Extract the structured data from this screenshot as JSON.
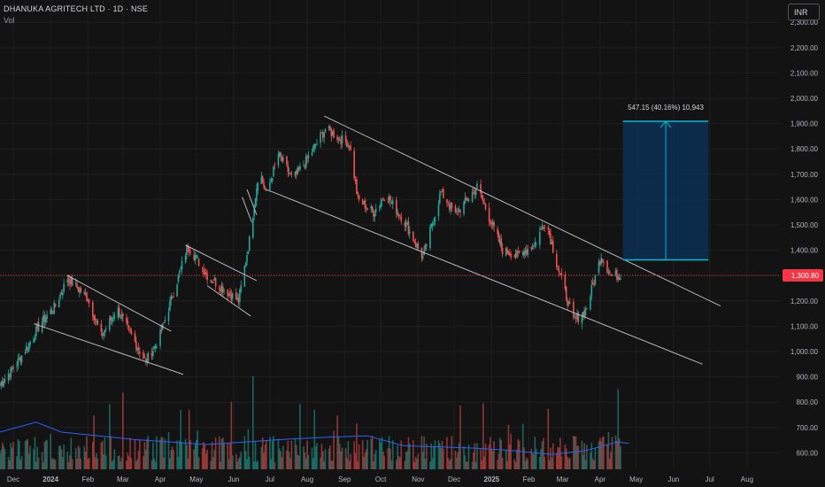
{
  "header": {
    "title": "DHANUKA AGRITECH LTD · 1D · NSE",
    "volume_label": "Vol",
    "currency_button": "INR"
  },
  "colors": {
    "background": "#131313",
    "grid": "#1f1f1f",
    "up": "#26a69a",
    "down": "#ef5350",
    "volume_ma": "#2962ff",
    "price_line": "#f23645",
    "channel": "#d1d4dc",
    "measure_fill": "#0c2f52",
    "measure_line": "#00bcd4"
  },
  "chart_data": {
    "type": "candlestick",
    "title": "DHANUKA AGRITECH LTD · 1D · NSE",
    "ylim": [
      560,
      2300
    ],
    "y_ticks": [
      "600.00",
      "700.00",
      "800.00",
      "900.00",
      "1,000.00",
      "1,100.00",
      "1,200.00",
      "1,300.00",
      "1,400.00",
      "1,500.00",
      "1,600.00",
      "1,700.00",
      "1,800.00",
      "1,900.00",
      "2,000.00",
      "2,100.00",
      "2,200.00",
      "2,300.00"
    ],
    "x_ticks": [
      "Dec",
      "2024",
      "Feb",
      "Mar",
      "Apr",
      "May",
      "Jun",
      "Jul",
      "Aug",
      "Sep",
      "Oct",
      "Nov",
      "Dec",
      "2025",
      "Feb",
      "Mar",
      "Apr",
      "May",
      "Jun",
      "Jul",
      "Aug"
    ],
    "last_price": {
      "label": "1,300.80",
      "value": 1300.8
    },
    "price_path": [
      [
        "2023-11-20",
        870
      ],
      [
        "2023-12-05",
        960
      ],
      [
        "2023-12-25",
        1120
      ],
      [
        "2024-01-05",
        1180
      ],
      [
        "2024-01-15",
        1290
      ],
      [
        "2024-02-01",
        1210
      ],
      [
        "2024-02-12",
        1060
      ],
      [
        "2024-02-25",
        1170
      ],
      [
        "2024-03-05",
        1090
      ],
      [
        "2024-03-20",
        960
      ],
      [
        "2024-03-31",
        1050
      ],
      [
        "2024-04-15",
        1280
      ],
      [
        "2024-04-24",
        1420
      ],
      [
        "2024-05-10",
        1300
      ],
      [
        "2024-05-28",
        1230
      ],
      [
        "2024-06-05",
        1200
      ],
      [
        "2024-06-14",
        1440
      ],
      [
        "2024-06-22",
        1720
      ],
      [
        "2024-06-28",
        1620
      ],
      [
        "2024-07-08",
        1780
      ],
      [
        "2024-07-20",
        1680
      ],
      [
        "2024-08-01",
        1760
      ],
      [
        "2024-08-16",
        1880
      ],
      [
        "2024-08-28",
        1840
      ],
      [
        "2024-09-05",
        1820
      ],
      [
        "2024-09-12",
        1600
      ],
      [
        "2024-09-25",
        1550
      ],
      [
        "2024-10-05",
        1620
      ],
      [
        "2024-10-20",
        1520
      ],
      [
        "2024-11-05",
        1370
      ],
      [
        "2024-11-20",
        1630
      ],
      [
        "2024-12-02",
        1540
      ],
      [
        "2024-12-20",
        1650
      ],
      [
        "2025-01-10",
        1400
      ],
      [
        "2025-01-22",
        1380
      ],
      [
        "2025-02-05",
        1420
      ],
      [
        "2025-02-15",
        1520
      ],
      [
        "2025-02-25",
        1330
      ],
      [
        "2025-03-10",
        1120
      ],
      [
        "2025-03-20",
        1160
      ],
      [
        "2025-04-02",
        1380
      ],
      [
        "2025-04-10",
        1300
      ],
      [
        "2025-04-18",
        1300.8
      ]
    ],
    "channels": [
      {
        "upper": [
          [
            "2024-01-15",
            1300
          ],
          [
            "2024-04-10",
            1080
          ]
        ],
        "lower": [
          [
            "2023-12-18",
            1110
          ],
          [
            "2024-04-20",
            910
          ]
        ]
      },
      {
        "upper": [
          [
            "2024-04-22",
            1420
          ],
          [
            "2024-06-20",
            1280
          ]
        ],
        "lower": [
          [
            "2024-05-10",
            1260
          ],
          [
            "2024-06-15",
            1140
          ]
        ]
      },
      {
        "upper": [
          [
            "2024-06-12",
            1640
          ],
          [
            "2024-06-20",
            1540
          ]
        ],
        "lower": [
          [
            "2024-06-08",
            1610
          ],
          [
            "2024-06-16",
            1510
          ]
        ]
      },
      {
        "upper": [
          [
            "2024-08-15",
            1930
          ],
          [
            "2025-07-10",
            1180
          ]
        ],
        "lower": [
          [
            "2024-06-28",
            1640
          ],
          [
            "2025-06-25",
            950
          ]
        ]
      }
    ],
    "measure": {
      "label": "547.15 (40.16%) 10,943",
      "from": [
        "2025-04-20",
        1362
      ],
      "to": [
        "2025-06-30",
        1909
      ]
    },
    "volume_panel": {
      "ylim": [
        0,
        100
      ],
      "ma_path": [
        [
          "2023-11-20",
          30
        ],
        [
          "2023-12-20",
          38
        ],
        [
          "2024-01-10",
          30
        ],
        [
          "2024-02-10",
          27
        ],
        [
          "2024-03-10",
          24
        ],
        [
          "2024-04-10",
          22
        ],
        [
          "2024-05-10",
          20
        ],
        [
          "2024-06-10",
          22
        ],
        [
          "2024-07-10",
          24
        ],
        [
          "2024-08-20",
          26
        ],
        [
          "2024-09-20",
          27
        ],
        [
          "2024-10-20",
          19
        ],
        [
          "2024-11-20",
          18
        ],
        [
          "2024-12-20",
          17
        ],
        [
          "2025-01-20",
          15
        ],
        [
          "2025-02-20",
          12
        ],
        [
          "2025-03-20",
          15
        ],
        [
          "2025-04-15",
          22
        ],
        [
          "2025-04-25",
          21
        ]
      ]
    }
  }
}
